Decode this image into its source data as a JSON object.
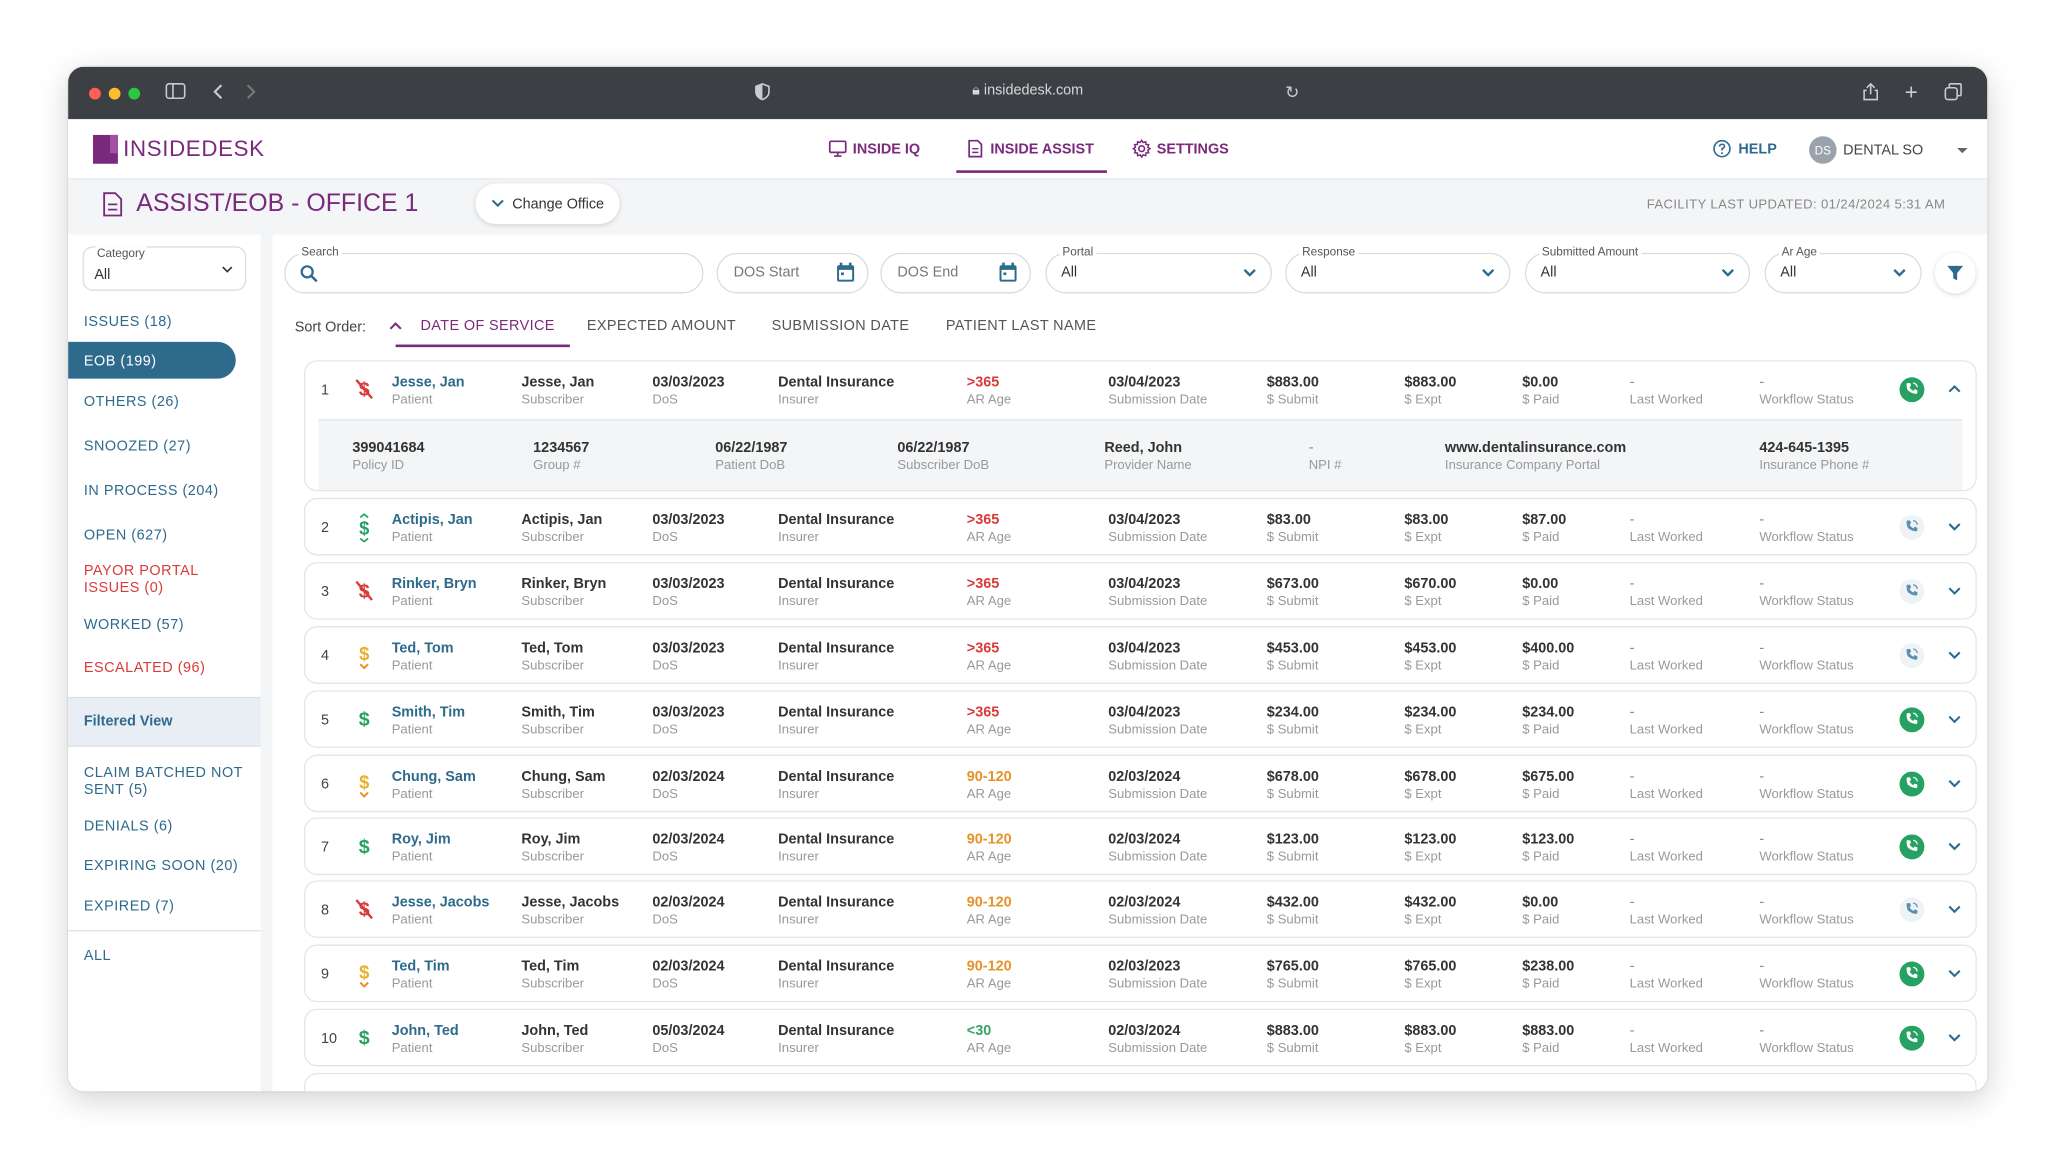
{
  "browser": {
    "url": "insidedesk.com"
  },
  "app": {
    "logo_part1": "INSIDE",
    "logo_part2": "DESK",
    "nav": [
      {
        "label": "INSIDE IQ",
        "icon": "monitor-icon"
      },
      {
        "label": "INSIDE ASSIST",
        "icon": "document-icon"
      },
      {
        "label": "SETTINGS",
        "icon": "gear-icon"
      }
    ],
    "help_label": "HELP",
    "user": {
      "initials": "DS",
      "name": "DENTAL SO"
    }
  },
  "page": {
    "title": "ASSIST/EOB - OFFICE 1",
    "change_office": "Change Office",
    "facility_updated": "FACILITY LAST UPDATED: 01/24/2024 5:31 AM"
  },
  "sidebar": {
    "category_label": "Category",
    "category_value": "All",
    "items": [
      {
        "label": "ISSUES (18)"
      },
      {
        "label": "EOB (199)"
      },
      {
        "label": "OTHERS (26)"
      },
      {
        "label": "SNOOZED (27)"
      },
      {
        "label": "IN PROCESS (204)"
      },
      {
        "label": "OPEN (627)"
      },
      {
        "label": "PAYOR PORTAL ISSUES (0)"
      },
      {
        "label": "WORKED (57)"
      },
      {
        "label": "ESCALATED (96)"
      }
    ],
    "filtered_view": "Filtered View",
    "filtered_items": [
      {
        "label": "CLAIM BATCHED NOT SENT (5)"
      },
      {
        "label": "DENIALS (6)"
      },
      {
        "label": "EXPIRING SOON (20)"
      },
      {
        "label": "EXPIRED (7)"
      }
    ],
    "all_label": "ALL"
  },
  "filters": {
    "search_label": "Search",
    "dos_start": "DOS Start",
    "dos_end": "DOS End",
    "portal_label": "Portal",
    "portal_value": "All",
    "response_label": "Response",
    "response_value": "All",
    "submitted_label": "Submitted Amount",
    "submitted_value": "All",
    "arage_label": "Ar Age",
    "arage_value": "All"
  },
  "sort": {
    "label": "Sort Order:",
    "tabs": [
      "DATE OF SERVICE",
      "EXPECTED AMOUNT",
      "SUBMISSION DATE",
      "PATIENT LAST NAME"
    ]
  },
  "labels": {
    "patient": "Patient",
    "subscriber": "Subscriber",
    "dos": "DoS",
    "insurer": "Insurer",
    "ar_age": "AR Age",
    "submission_date": "Submission Date",
    "submit": "$ Submit",
    "expt": "$ Expt",
    "paid": "$ Paid",
    "last_worked": "Last Worked",
    "workflow": "Workflow Status"
  },
  "detail": {
    "policy_id": "399041684",
    "policy_id_label": "Policy ID",
    "group": "1234567",
    "group_label": "Group #",
    "patient_dob": "06/22/1987",
    "patient_dob_label": "Patient DoB",
    "subscriber_dob": "06/22/1987",
    "subscriber_dob_label": "Subscriber DoB",
    "provider": "Reed, John",
    "provider_label": "Provider Name",
    "npi": "-",
    "npi_label": "NPI #",
    "portal": "www.dentalinsurance.com",
    "portal_label": "Insurance Company Portal",
    "phone": "424-645-1395",
    "phone_label": "Insurance Phone #"
  },
  "rows": [
    {
      "num": "1",
      "status": "no-dollar",
      "patient": "Jesse, Jan",
      "subscriber": "Jesse, Jan",
      "dos": "03/03/2023",
      "insurer": "Dental Insurance",
      "age": ">365",
      "age_color": "red",
      "sub_date": "03/04/2023",
      "submit": "$883.00",
      "expt": "$883.00",
      "paid": "$0.00",
      "last_worked": "-",
      "workflow": "-",
      "phone": "on",
      "expanded": true
    },
    {
      "num": "2",
      "status": "dollar-updown",
      "patient": "Actipis, Jan",
      "subscriber": "Actipis, Jan",
      "dos": "03/03/2023",
      "insurer": "Dental Insurance",
      "age": ">365",
      "age_color": "red",
      "sub_date": "03/04/2023",
      "submit": "$83.00",
      "expt": "$83.00",
      "paid": "$87.00",
      "last_worked": "-",
      "workflow": "-",
      "phone": "off"
    },
    {
      "num": "3",
      "status": "no-dollar",
      "patient": "Rinker, Bryn",
      "subscriber": "Rinker, Bryn",
      "dos": "03/03/2023",
      "insurer": "Dental Insurance",
      "age": ">365",
      "age_color": "red",
      "sub_date": "03/04/2023",
      "submit": "$673.00",
      "expt": "$670.00",
      "paid": "$0.00",
      "last_worked": "-",
      "workflow": "-",
      "phone": "off"
    },
    {
      "num": "4",
      "status": "dollar-down",
      "patient": "Ted, Tom",
      "subscriber": "Ted, Tom",
      "dos": "03/03/2023",
      "insurer": "Dental Insurance",
      "age": ">365",
      "age_color": "red",
      "sub_date": "03/04/2023",
      "submit": "$453.00",
      "expt": "$453.00",
      "paid": "$400.00",
      "last_worked": "-",
      "workflow": "-",
      "phone": "off"
    },
    {
      "num": "5",
      "status": "dollar",
      "patient": "Smith, Tim",
      "subscriber": "Smith, Tim",
      "dos": "03/03/2023",
      "insurer": "Dental Insurance",
      "age": ">365",
      "age_color": "red",
      "sub_date": "03/04/2023",
      "submit": "$234.00",
      "expt": "$234.00",
      "paid": "$234.00",
      "last_worked": "-",
      "workflow": "-",
      "phone": "on"
    },
    {
      "num": "6",
      "status": "dollar-down",
      "patient": "Chung, Sam",
      "subscriber": "Chung, Sam",
      "dos": "02/03/2024",
      "insurer": "Dental Insurance",
      "age": "90-120",
      "age_color": "orange",
      "sub_date": "02/03/2024",
      "submit": "$678.00",
      "expt": "$678.00",
      "paid": "$675.00",
      "last_worked": "-",
      "workflow": "-",
      "phone": "on"
    },
    {
      "num": "7",
      "status": "dollar",
      "patient": "Roy, Jim",
      "subscriber": "Roy, Jim",
      "dos": "02/03/2024",
      "insurer": "Dental Insurance",
      "age": "90-120",
      "age_color": "orange",
      "sub_date": "02/03/2024",
      "submit": "$123.00",
      "expt": "$123.00",
      "paid": "$123.00",
      "last_worked": "-",
      "workflow": "-",
      "phone": "on"
    },
    {
      "num": "8",
      "status": "no-dollar",
      "patient": "Jesse, Jacobs",
      "subscriber": "Jesse, Jacobs",
      "dos": "02/03/2024",
      "insurer": "Dental Insurance",
      "age": "90-120",
      "age_color": "orange",
      "sub_date": "02/03/2024",
      "submit": "$432.00",
      "expt": "$432.00",
      "paid": "$0.00",
      "last_worked": "-",
      "workflow": "-",
      "phone": "off"
    },
    {
      "num": "9",
      "status": "dollar-down",
      "patient": "Ted, Tim",
      "subscriber": "Ted, Tim",
      "dos": "02/03/2024",
      "insurer": "Dental Insurance",
      "age": "90-120",
      "age_color": "orange",
      "sub_date": "02/03/2023",
      "submit": "$765.00",
      "expt": "$765.00",
      "paid": "$238.00",
      "last_worked": "-",
      "workflow": "-",
      "phone": "on"
    },
    {
      "num": "10",
      "status": "dollar",
      "patient": "John, Ted",
      "subscriber": "John, Ted",
      "dos": "05/03/2024",
      "insurer": "Dental Insurance",
      "age": "<30",
      "age_color": "green",
      "sub_date": "02/03/2024",
      "submit": "$883.00",
      "expt": "$883.00",
      "paid": "$883.00",
      "last_worked": "-",
      "workflow": "-",
      "phone": "on"
    }
  ],
  "colors": {
    "brand": "#7a2a7d",
    "primary": "#2e6a8c",
    "danger": "#d93a3a",
    "warning": "#e8902a",
    "success": "#27a163"
  }
}
